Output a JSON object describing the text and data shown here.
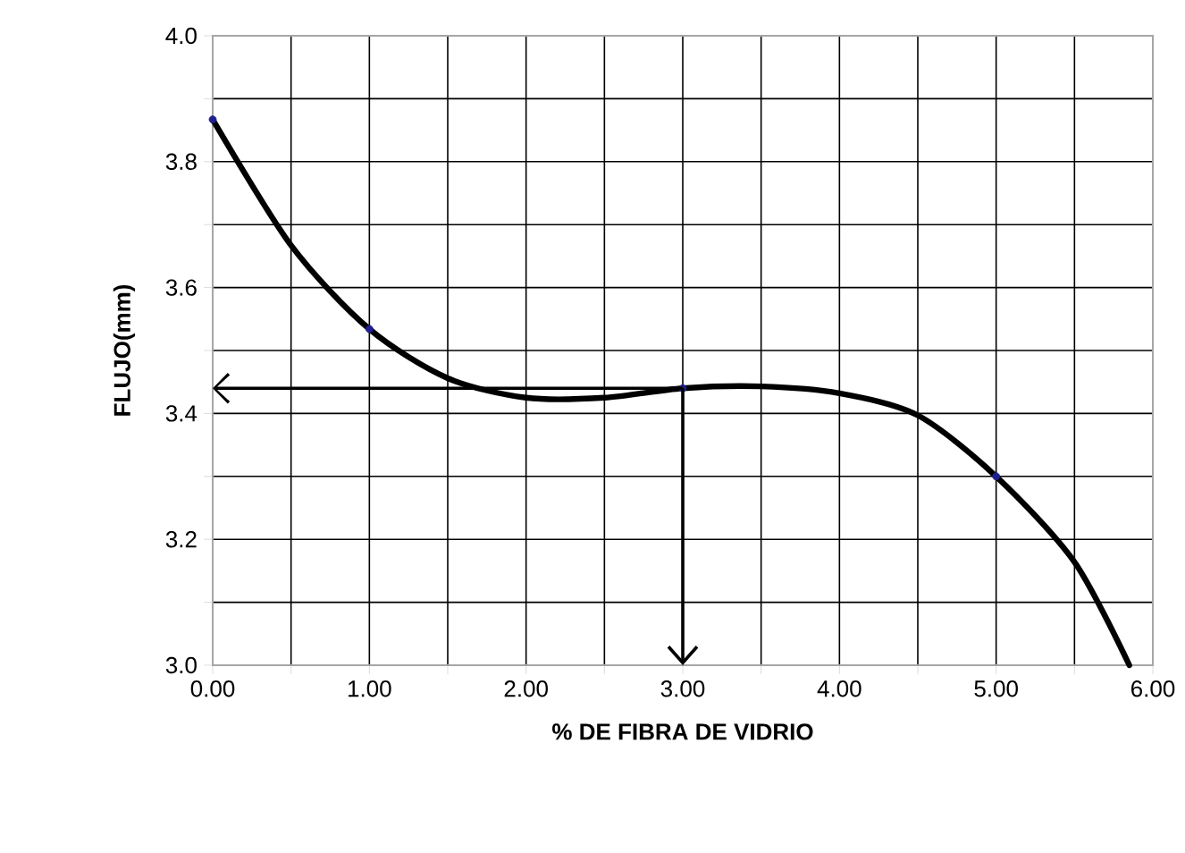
{
  "chart_data": {
    "type": "scatter",
    "xlabel": "% DE FIBRA DE VIDRIO",
    "ylabel": "FLUJO(mm)",
    "xlim": [
      0,
      6
    ],
    "ylim": [
      3.0,
      4.0
    ],
    "xticks": [
      {
        "value": 0,
        "label": "0.00"
      },
      {
        "value": 0.5,
        "label": null
      },
      {
        "value": 1,
        "label": "1.00"
      },
      {
        "value": 1.5,
        "label": null
      },
      {
        "value": 2,
        "label": "2.00"
      },
      {
        "value": 2.5,
        "label": null
      },
      {
        "value": 3,
        "label": "3.00"
      },
      {
        "value": 3.5,
        "label": null
      },
      {
        "value": 4,
        "label": "4.00"
      },
      {
        "value": 4.5,
        "label": null
      },
      {
        "value": 5,
        "label": "5.00"
      },
      {
        "value": 5.5,
        "label": null
      },
      {
        "value": 6,
        "label": "6.00"
      }
    ],
    "yticks": [
      {
        "value": 3.0,
        "label": "3.0"
      },
      {
        "value": 3.1,
        "label": null
      },
      {
        "value": 3.2,
        "label": "3.2"
      },
      {
        "value": 3.3,
        "label": null
      },
      {
        "value": 3.4,
        "label": "3.4"
      },
      {
        "value": 3.5,
        "label": null
      },
      {
        "value": 3.6,
        "label": "3.6"
      },
      {
        "value": 3.7,
        "label": null
      },
      {
        "value": 3.8,
        "label": "3.8"
      },
      {
        "value": 3.9,
        "label": null
      },
      {
        "value": 4.0,
        "label": "4.0"
      }
    ],
    "grid": true,
    "series": [
      {
        "color": "#1f1f8f",
        "marker": "circle",
        "x": [
          0,
          1,
          3,
          5
        ],
        "values": [
          3.867,
          3.534,
          3.44,
          3.3
        ]
      },
      {
        "type": "line",
        "color": "#000000",
        "marker": "none",
        "x": [
          0,
          0.5,
          1,
          1.5,
          2,
          2.5,
          3,
          3.5,
          4,
          4.5,
          5,
          5.5,
          5.85
        ],
        "values": [
          3.867,
          3.667,
          3.534,
          3.456,
          3.425,
          3.425,
          3.44,
          3.443,
          3.432,
          3.397,
          3.3,
          3.164,
          3.0
        ]
      }
    ]
  }
}
